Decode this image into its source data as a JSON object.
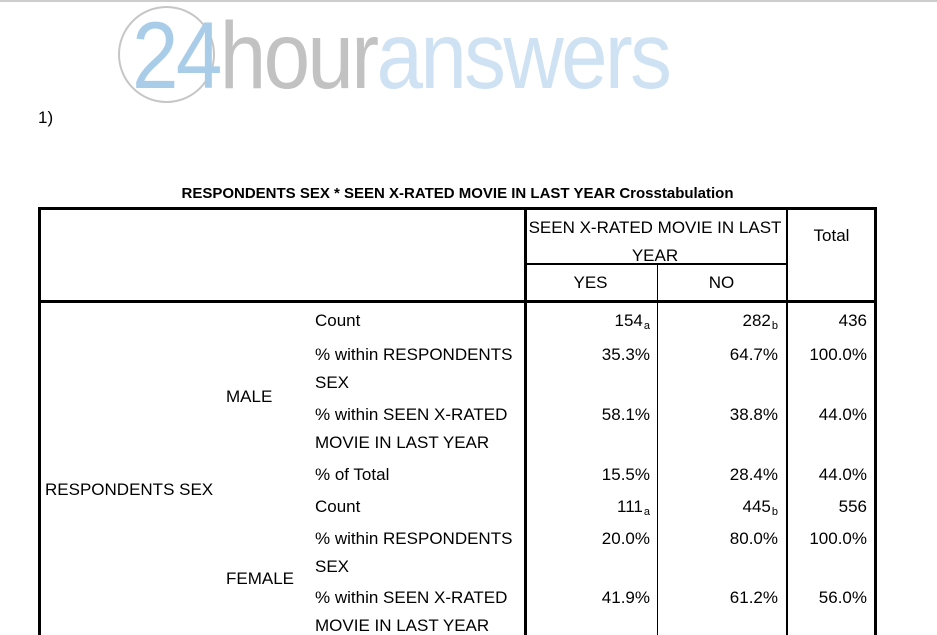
{
  "logo": {
    "number": "24",
    "word1": "hour",
    "word2": "answers",
    "colors": {
      "number": "#a9cde9",
      "word1": "#c2c2c2",
      "word2": "#cfe2f4",
      "circle": "#c6c6c6"
    }
  },
  "question_label": "1)",
  "table": {
    "title": "RESPONDENTS SEX * SEEN X-RATED MOVIE IN LAST YEAR Crosstabulation",
    "col_group_header": "SEEN X-RATED MOVIE IN LAST YEAR",
    "total_header": "Total",
    "col_headers": [
      "YES",
      "NO"
    ],
    "row_dimension_label": "RESPONDENTS SEX",
    "groups": [
      {
        "label": "MALE"
      },
      {
        "label": "FEMALE"
      }
    ],
    "rows": [
      {
        "group": "MALE",
        "stat": "Count",
        "yes": "154",
        "yes_sub": "a",
        "no": "282",
        "no_sub": "b",
        "total": "436"
      },
      {
        "group": "MALE",
        "stat": "% within RESPONDENTS SEX",
        "yes": "35.3%",
        "no": "64.7%",
        "total": "100.0%"
      },
      {
        "group": "MALE",
        "stat": "% within SEEN X-RATED MOVIE IN LAST YEAR",
        "yes": "58.1%",
        "no": "38.8%",
        "total": "44.0%"
      },
      {
        "group": "MALE",
        "stat": "% of Total",
        "yes": "15.5%",
        "no": "28.4%",
        "total": "44.0%"
      },
      {
        "group": "FEMALE",
        "stat": "Count",
        "yes": "111",
        "yes_sub": "a",
        "no": "445",
        "no_sub": "b",
        "total": "556"
      },
      {
        "group": "FEMALE",
        "stat": "% within RESPONDENTS SEX",
        "yes": "20.0%",
        "no": "80.0%",
        "total": "100.0%"
      },
      {
        "group": "FEMALE",
        "stat": "% within SEEN X-RATED MOVIE IN LAST YEAR",
        "yes": "41.9%",
        "no": "61.2%",
        "total": "56.0%"
      }
    ]
  }
}
